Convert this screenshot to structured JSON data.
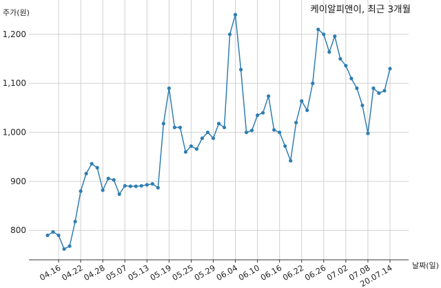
{
  "chart_data": {
    "type": "line",
    "title": "케이알피앤이, 최근 3개월",
    "ylabel": "주가(원)",
    "xlabel": "날짜(일)",
    "ylim": [
      740,
      1270
    ],
    "y_ticks": [
      800,
      900,
      1000,
      1100,
      1200
    ],
    "y_tick_labels": [
      "800",
      "900",
      "1,000",
      "1,100",
      "1,200"
    ],
    "x_tick_labels": [
      "04.16",
      "04.22",
      "04.28",
      "05.07",
      "05.13",
      "05.19",
      "05.25",
      "05.29",
      "06.04",
      "06.10",
      "06.16",
      "06.22",
      "06.26",
      "07.02",
      "07.08",
      "20.07.14"
    ],
    "x_tick_index": [
      2,
      6,
      10,
      14,
      18,
      22,
      26,
      30,
      34,
      38,
      42,
      46,
      50,
      54,
      58,
      62
    ],
    "grid": true,
    "line_color": "#2e7db1",
    "series": [
      {
        "values": [
          790,
          797,
          790,
          762,
          768,
          818,
          880,
          916,
          936,
          928,
          882,
          906,
          903,
          874,
          891,
          890,
          890,
          891,
          893,
          895,
          887,
          1018,
          1090,
          1010,
          1010,
          960,
          972,
          966,
          988,
          1000,
          988,
          1018,
          1010,
          1200,
          1240,
          1128,
          1000,
          1004,
          1035,
          1040,
          1074,
          1005,
          1000,
          972,
          942,
          1020,
          1064,
          1045,
          1100,
          1210,
          1200,
          1164,
          1196,
          1150,
          1136,
          1110,
          1090,
          1055,
          998,
          1090,
          1080,
          1085,
          1130
        ]
      }
    ]
  }
}
